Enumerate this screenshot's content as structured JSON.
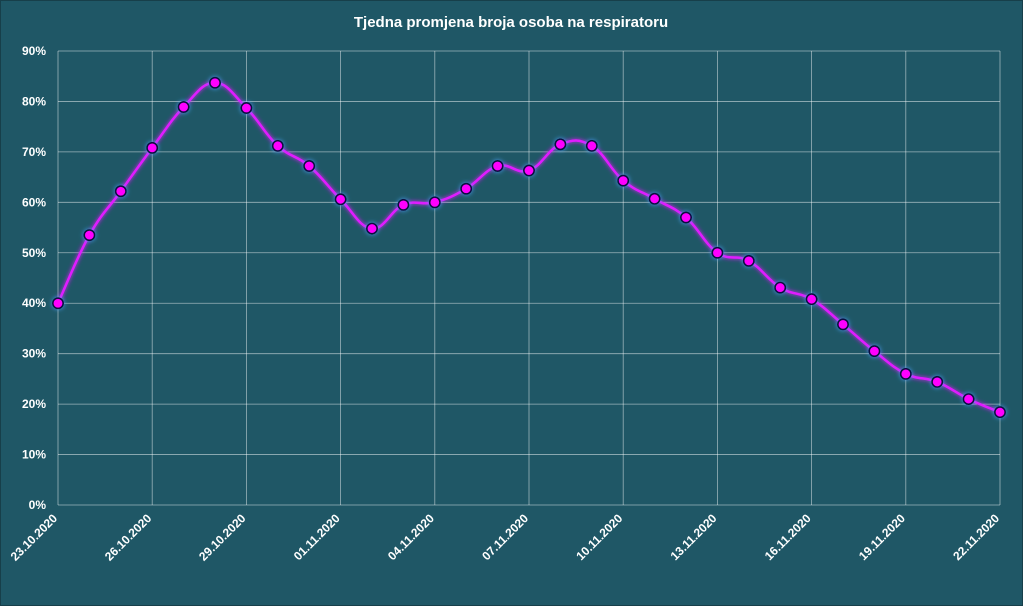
{
  "chart_data": {
    "type": "line",
    "title": "Tjedna promjena broja osoba na respiratoru",
    "xlabel": "",
    "ylabel": "",
    "ylim": [
      0,
      0.9
    ],
    "yticks": [
      "0%",
      "10%",
      "20%",
      "30%",
      "40%",
      "50%",
      "60%",
      "70%",
      "80%",
      "90%"
    ],
    "x": [
      "23.10.2020",
      "24.10.2020",
      "25.10.2020",
      "26.10.2020",
      "27.10.2020",
      "28.10.2020",
      "29.10.2020",
      "30.10.2020",
      "31.10.2020",
      "01.11.2020",
      "02.11.2020",
      "03.11.2020",
      "04.11.2020",
      "05.11.2020",
      "06.11.2020",
      "07.11.2020",
      "08.11.2020",
      "09.11.2020",
      "10.11.2020",
      "11.11.2020",
      "12.11.2020",
      "13.11.2020",
      "14.11.2020",
      "15.11.2020",
      "16.11.2020",
      "17.11.2020",
      "18.11.2020",
      "19.11.2020",
      "20.11.2020",
      "21.11.2020",
      "22.11.2020"
    ],
    "xtick_labels": [
      "23.10.2020",
      "26.10.2020",
      "29.10.2020",
      "01.11.2020",
      "04.11.2020",
      "07.11.2020",
      "10.11.2020",
      "13.11.2020",
      "16.11.2020",
      "19.11.2020",
      "22.11.2020"
    ],
    "series": [
      {
        "values": [
          0.4,
          0.535,
          0.622,
          0.708,
          0.789,
          0.837,
          0.787,
          0.712,
          0.672,
          0.606,
          0.548,
          0.595,
          0.6,
          0.627,
          0.672,
          0.663,
          0.715,
          0.712,
          0.643,
          0.607,
          0.57,
          0.5,
          0.484,
          0.431,
          0.408,
          0.358,
          0.305,
          0.26,
          0.244,
          0.21,
          0.184
        ]
      }
    ],
    "grid": true,
    "legend": "none",
    "line_color": "#e01cff",
    "marker_color": "#ff00ff",
    "background_color": "#1f5766"
  }
}
